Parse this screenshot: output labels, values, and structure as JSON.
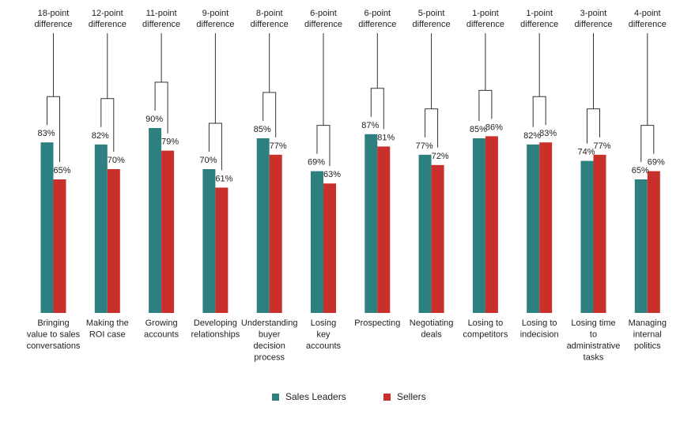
{
  "chart_data": {
    "type": "bar",
    "title": "",
    "xlabel": "",
    "ylabel": "",
    "ylim": [
      0,
      100
    ],
    "grid": false,
    "legend_position": "bottom",
    "categories": [
      "Bringing value to sales conversations",
      "Making the ROI case",
      "Growing accounts",
      "Developing relationships",
      "Understanding buyer decision process",
      "Losing key accounts",
      "Prospecting",
      "Negotiating deals",
      "Losing to competitors",
      "Losing to indecision",
      "Losing time to administrative tasks",
      "Managing internal politics"
    ],
    "category_lines": [
      [
        "Bringing",
        "value to sales",
        "conversations"
      ],
      [
        "Making the",
        "ROI case"
      ],
      [
        "Growing",
        "accounts"
      ],
      [
        "Developing",
        "relationships"
      ],
      [
        "Understanding",
        "buyer",
        "decision",
        "process"
      ],
      [
        "Losing",
        "key",
        "accounts"
      ],
      [
        "Prospecting"
      ],
      [
        "Negotiating",
        "deals"
      ],
      [
        "Losing to",
        "competitors"
      ],
      [
        "Losing to",
        "indecision"
      ],
      [
        "Losing time",
        "to",
        "administrative",
        "tasks"
      ],
      [
        "Managing",
        "internal",
        "politics"
      ]
    ],
    "series": [
      {
        "name": "Sales Leaders",
        "color": "#2e7f80",
        "values": [
          83,
          82,
          90,
          70,
          85,
          69,
          87,
          77,
          85,
          82,
          74,
          65
        ],
        "labels": [
          "83%",
          "82%",
          "90%",
          "70%",
          "85%",
          "69%",
          "87%",
          "77%",
          "85%",
          "82%",
          "74%",
          "65%"
        ]
      },
      {
        "name": "Sellers",
        "color": "#c9302c",
        "values": [
          65,
          70,
          79,
          61,
          77,
          63,
          81,
          72,
          86,
          83,
          77,
          69
        ],
        "labels": [
          "65%",
          "70%",
          "79%",
          "61%",
          "77%",
          "63%",
          "81%",
          "72%",
          "86%",
          "83%",
          "77%",
          "69%"
        ]
      }
    ],
    "annotations": [
      [
        "18-point",
        "difference"
      ],
      [
        "12-point",
        "difference"
      ],
      [
        "11-point",
        "difference"
      ],
      [
        "9-point",
        "difference"
      ],
      [
        "8-point",
        "difference"
      ],
      [
        "6-point",
        "difference"
      ],
      [
        "6-point",
        "difference"
      ],
      [
        "5-point",
        "difference"
      ],
      [
        "1-point",
        "difference"
      ],
      [
        "1-point",
        "difference"
      ],
      [
        "3-point",
        "difference"
      ],
      [
        "4-point",
        "difference"
      ]
    ]
  },
  "legend": {
    "sales_leaders": "Sales Leaders",
    "sellers": "Sellers"
  }
}
